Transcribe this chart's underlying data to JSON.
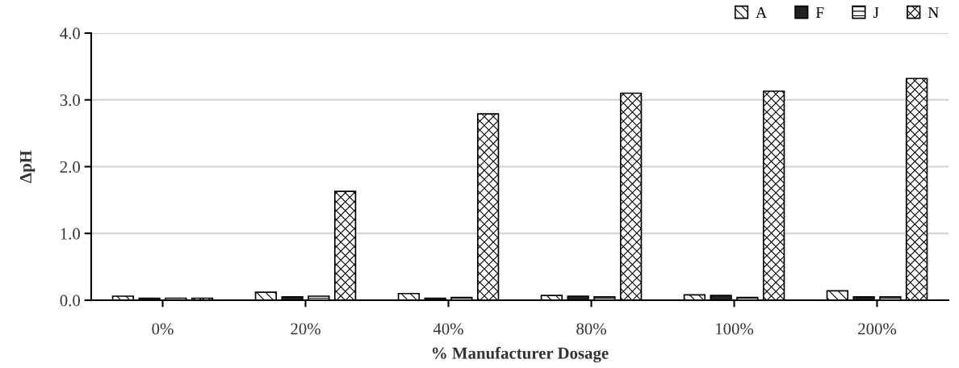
{
  "chart_data": {
    "type": "bar",
    "xlabel": "% Manufacturer Dosage",
    "ylabel": "ΔpH",
    "categories": [
      "0%",
      "20%",
      "40%",
      "80%",
      "100%",
      "200%"
    ],
    "series": [
      {
        "name": "A",
        "color": "#000000",
        "values": [
          0.06,
          0.12,
          0.1,
          0.07,
          0.08,
          0.14
        ]
      },
      {
        "name": "F",
        "color": "#222222",
        "values": [
          0.03,
          0.05,
          0.03,
          0.06,
          0.07,
          0.05
        ]
      },
      {
        "name": "J",
        "color": "#000000",
        "values": [
          0.03,
          0.06,
          0.04,
          0.05,
          0.04,
          0.05
        ]
      },
      {
        "name": "N",
        "color": "#000000",
        "values": [
          0.03,
          1.63,
          2.79,
          3.1,
          3.13,
          3.32
        ]
      }
    ],
    "ylim": [
      0,
      4
    ],
    "yticks": [
      {
        "value": 0,
        "label": "0.0"
      },
      {
        "value": 1,
        "label": "1.0"
      },
      {
        "value": 2,
        "label": "2.0"
      },
      {
        "value": 3,
        "label": "3.0"
      },
      {
        "value": 4,
        "label": "4.0"
      }
    ],
    "grid": "y",
    "legend": "top right"
  }
}
